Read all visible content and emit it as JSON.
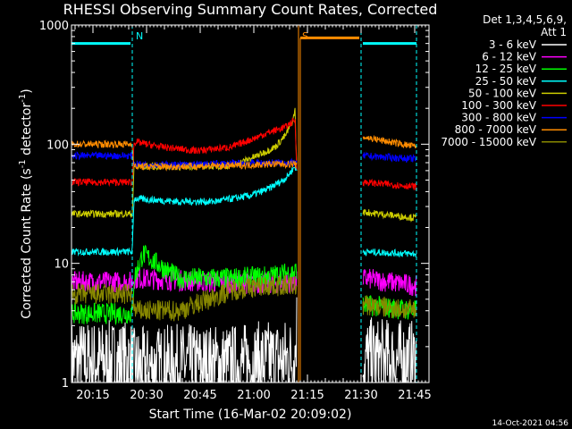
{
  "chart_data": {
    "type": "line",
    "title": "RHESSI Observing Summary Count Rates, Corrected",
    "xlabel": "Start Time (16-Mar-02 20:09:02)",
    "ylabel_main": "Corrected Count Rate (s",
    "ylabel_sup1": "-1",
    "ylabel_mid": " detector",
    "ylabel_sup2": "-1",
    "ylabel_end": ")",
    "y_scale": "log",
    "ylim": [
      1,
      1000
    ],
    "y_ticks": [
      {
        "value": 1,
        "label": "1"
      },
      {
        "value": 10,
        "label": "10"
      },
      {
        "value": 100,
        "label": "100"
      },
      {
        "value": 1000,
        "label": "1000"
      }
    ],
    "xlim_minutes": [
      0,
      100
    ],
    "x_ticks": [
      {
        "minute": 6,
        "label": "20:15"
      },
      {
        "minute": 21,
        "label": "20:30"
      },
      {
        "minute": 36,
        "label": "20:45"
      },
      {
        "minute": 51,
        "label": "21:00"
      },
      {
        "minute": 66,
        "label": "21:15"
      },
      {
        "minute": 81,
        "label": "21:30"
      },
      {
        "minute": 96,
        "label": "21:45"
      }
    ],
    "legend": {
      "placement": "right",
      "header1": "Det 1,3,4,5,6,9,",
      "header2": "Att 1"
    },
    "gaps": [
      [
        63,
        81
      ]
    ],
    "markers": [
      {
        "minute": 0,
        "label": "",
        "color": "#00ffff"
      },
      {
        "minute": 17,
        "label": "N",
        "color": "#00ffff"
      },
      {
        "minute": 63.5,
        "label": "S",
        "color": "#ff8c00"
      },
      {
        "minute": 81,
        "label": "",
        "color": "#00ffff"
      },
      {
        "minute": 96.5,
        "label": "",
        "color": "#00ffff"
      }
    ],
    "flag_bars": [
      {
        "from": 0,
        "to": 16.5,
        "level": 700,
        "color": "#00ffff"
      },
      {
        "from": 64,
        "to": 80.5,
        "level": 780,
        "color": "#ff8c00"
      },
      {
        "from": 81.5,
        "to": 96.5,
        "level": 700,
        "color": "#00ffff"
      }
    ],
    "series": [
      {
        "name": "3 - 6 keV",
        "color": "#ffffff",
        "x": [
          0,
          17,
          17.5,
          30,
          45,
          55,
          62.5,
          63,
          81.5,
          96.5
        ],
        "y": [
          1.5,
          1.5,
          1.3,
          1.4,
          1.4,
          1.5,
          1.6,
          3.0,
          1.6,
          1.5
        ]
      },
      {
        "name": "6 - 12 keV",
        "color": "#ff00ff",
        "x": [
          0,
          17,
          17.5,
          30,
          45,
          55,
          62.5,
          63,
          81.5,
          96.5
        ],
        "y": [
          7.0,
          7.0,
          7.5,
          7.2,
          6.8,
          6.8,
          7.0,
          7.0,
          7.5,
          6.5
        ]
      },
      {
        "name": "12 - 25 keV",
        "color": "#00ff00",
        "x": [
          0,
          17,
          17.5,
          20,
          30,
          45,
          55,
          62.5,
          63,
          81.5,
          96.5
        ],
        "y": [
          3.8,
          3.8,
          7.5,
          12,
          7.5,
          7.5,
          7.8,
          8.5,
          9.0,
          4.5,
          4.0
        ]
      },
      {
        "name": "25 - 50 keV",
        "color": "#00ffff",
        "x": [
          0,
          17,
          17.5,
          30,
          40,
          50,
          55,
          60,
          62.5,
          63,
          81.5,
          96.5
        ],
        "y": [
          12.5,
          12.5,
          35,
          33,
          33,
          37,
          42,
          52,
          65,
          60,
          12.5,
          12
        ]
      },
      {
        "name": "50 - 100 keV",
        "color": "#cccc00",
        "x": [
          0,
          17,
          17.5,
          30,
          45,
          52,
          57,
          60,
          62,
          62.5,
          63,
          81.5,
          96.5
        ],
        "y": [
          26,
          26,
          65,
          65,
          66,
          80,
          95,
          120,
          160,
          200,
          65,
          27,
          24
        ]
      },
      {
        "name": "100 - 300 keV",
        "color": "#ff0000",
        "x": [
          0,
          17,
          17.5,
          25,
          35,
          45,
          55,
          60,
          62.5,
          63,
          81.5,
          96.5
        ],
        "y": [
          48,
          48,
          105,
          95,
          88,
          95,
          125,
          140,
          160,
          65,
          48,
          44
        ]
      },
      {
        "name": "300 - 800 keV",
        "color": "#0000ff",
        "x": [
          0,
          17,
          17.5,
          30,
          45,
          55,
          62.5,
          63,
          81.5,
          96.5
        ],
        "y": [
          80,
          80,
          68,
          67,
          69,
          70,
          70,
          68,
          80,
          75
        ]
      },
      {
        "name": "800 - 7000 keV",
        "color": "#ff8c00",
        "x": [
          0,
          17,
          17.5,
          30,
          45,
          55,
          62.5,
          63,
          81.5,
          96.5
        ],
        "y": [
          100,
          100,
          65,
          65,
          66,
          68,
          68,
          65,
          115,
          95
        ]
      },
      {
        "name": "7000 - 15000 keV",
        "color": "#888800",
        "x": [
          0,
          17,
          17.5,
          30,
          45,
          55,
          62.5,
          63,
          81.5,
          96.5
        ],
        "y": [
          5.5,
          5.5,
          4.0,
          4.0,
          6.0,
          6.5,
          6.5,
          6.0,
          4.5,
          4.0
        ]
      }
    ]
  },
  "footer": {
    "timestamp": "14-Oct-2021 04:56"
  }
}
